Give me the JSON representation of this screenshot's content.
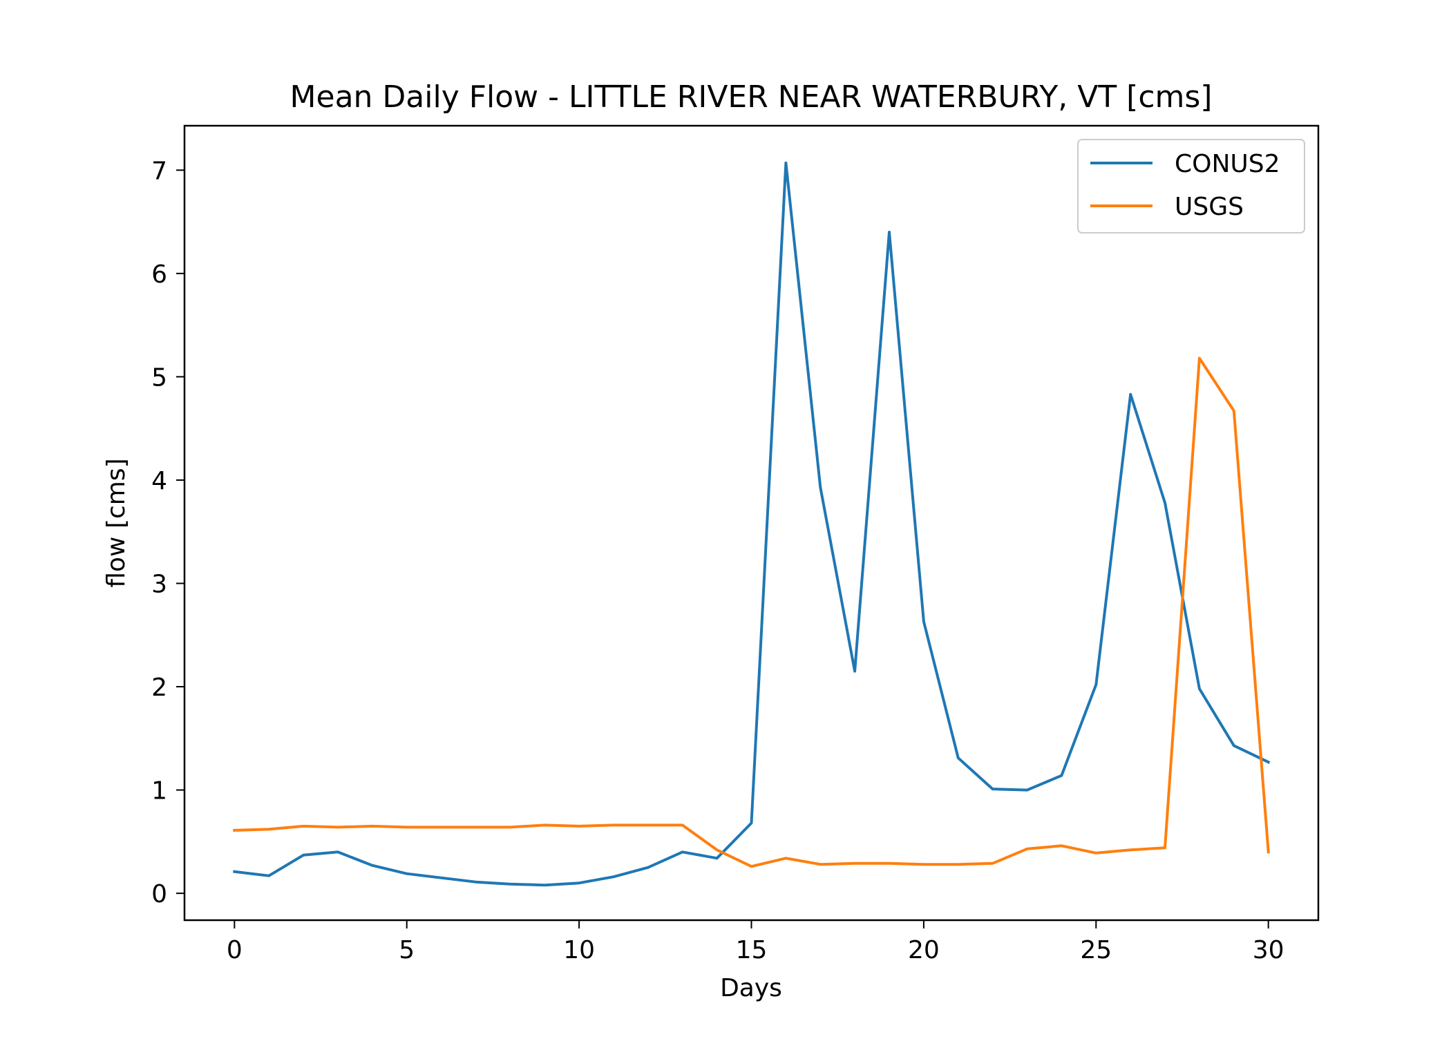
{
  "chart_data": {
    "type": "line",
    "title": "Mean Daily Flow - LITTLE RIVER NEAR WATERBURY, VT [cms]",
    "xlabel": "Days",
    "ylabel": "flow [cms]",
    "xlim": [
      -1.45,
      31.45
    ],
    "ylim": [
      -0.26,
      7.43
    ],
    "xticks": [
      0,
      5,
      10,
      15,
      20,
      25,
      30
    ],
    "yticks": [
      0,
      1,
      2,
      3,
      4,
      5,
      6,
      7
    ],
    "grid": false,
    "legend": "top-right",
    "x": [
      0,
      1,
      2,
      3,
      4,
      5,
      6,
      7,
      8,
      9,
      10,
      11,
      12,
      13,
      14,
      15,
      16,
      17,
      18,
      19,
      20,
      21,
      22,
      23,
      24,
      25,
      26,
      27,
      28,
      29,
      30
    ],
    "series": [
      {
        "name": "CONUS2",
        "color": "#1f77b4",
        "values": [
          0.21,
          0.17,
          0.37,
          0.4,
          0.27,
          0.19,
          0.15,
          0.11,
          0.09,
          0.08,
          0.1,
          0.16,
          0.25,
          0.4,
          0.34,
          0.68,
          7.07,
          3.93,
          2.15,
          6.4,
          2.63,
          1.31,
          1.01,
          1.0,
          1.14,
          2.02,
          4.83,
          3.78,
          1.98,
          1.43,
          1.27
        ]
      },
      {
        "name": "USGS",
        "color": "#ff7f0e",
        "values": [
          0.61,
          0.62,
          0.65,
          0.64,
          0.65,
          0.64,
          0.64,
          0.64,
          0.64,
          0.66,
          0.65,
          0.66,
          0.66,
          0.66,
          0.42,
          0.26,
          0.34,
          0.28,
          0.29,
          0.29,
          0.28,
          0.28,
          0.29,
          0.43,
          0.46,
          0.39,
          0.42,
          0.44,
          5.18,
          4.67,
          0.4
        ]
      }
    ]
  }
}
